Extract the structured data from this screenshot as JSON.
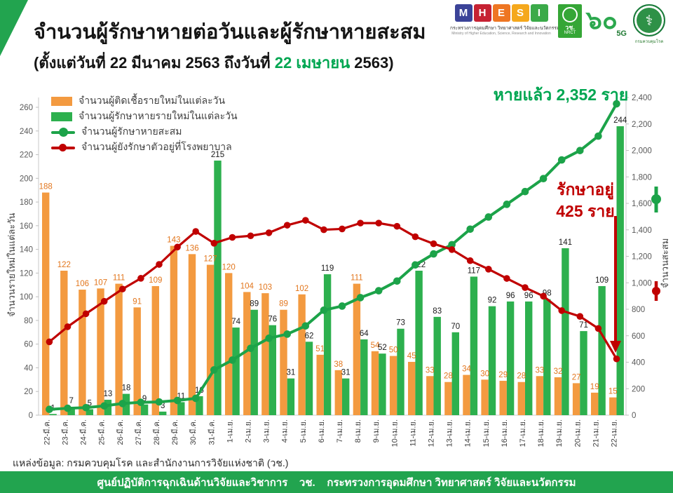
{
  "header": {
    "title": "จำนวนผู้รักษาหายต่อวันและผู้รักษาหายสะสม",
    "subtitle_prefix": "(ตั้งแต่วันที่ 22 มีนาคม 2563 ถึงวันที่ ",
    "subtitle_highlight": "22 เมษายน",
    "subtitle_suffix": " 2563)"
  },
  "logos": {
    "mhesi": {
      "letters": [
        "M",
        "H",
        "E",
        "S",
        "I"
      ],
      "caption_th": "กระทรวงการอุดมศึกษา วิทยาศาสตร์ วิจัยและนวัตกรรม",
      "caption_en": "Ministry of Higher Education, Science, Research and Innovation"
    },
    "nrct": {
      "abbr_th": "วช.",
      "abbr_en": "NRCT"
    },
    "anniversary": {
      "numeral": "๖๐",
      "tag": "5G"
    },
    "ddc": {
      "caption": "กรมควบคุมโรค"
    }
  },
  "legend": {
    "items": [
      {
        "label": "จำนวนผู้ติดเชื้อรายใหม่ในแต่ละวัน",
        "type": "bar",
        "color": "#F39A40"
      },
      {
        "label": "จำนวนผู้รักษาหายรายใหม่ในแต่ละวัน",
        "type": "bar",
        "color": "#2DB04E"
      },
      {
        "label": "จำนวนผู้รักษาหายสะสม",
        "type": "line",
        "color": "#1CA349"
      },
      {
        "label": "จำนวนผู้ยังรักษาตัวอยู่ที่โรงพยาบาล",
        "type": "line",
        "color": "#C00000"
      }
    ]
  },
  "annotations": {
    "recovered_total": "หายแล้ว 2,352 ราย",
    "in_hospital_line1": "รักษาอยู่",
    "in_hospital_line2": "425 ราย"
  },
  "chart_data": {
    "type": "bar",
    "subtype": "combo-bar-line-dual-axis",
    "categories": [
      "22-มี.ค.",
      "23-มี.ค.",
      "24-มี.ค.",
      "25-มี.ค.",
      "26-มี.ค.",
      "27-มี.ค.",
      "28-มี.ค.",
      "29-มี.ค.",
      "30-มี.ค.",
      "31-มี.ค.",
      "1-เม.ย.",
      "2-เม.ย.",
      "3-เม.ย.",
      "4-เม.ย.",
      "5-เม.ย.",
      "6-เม.ย.",
      "7-เม.ย.",
      "8-เม.ย.",
      "9-เม.ย.",
      "10-เม.ย.",
      "11-เม.ย.",
      "12-เม.ย.",
      "13-เม.ย.",
      "14-เม.ย.",
      "15-เม.ย.",
      "16-เม.ย.",
      "17-เม.ย.",
      "18-เม.ย.",
      "19-เม.ย.",
      "20-เม.ย.",
      "21-เม.ย.",
      "22-เม.ย."
    ],
    "series": [
      {
        "name": "จำนวนผู้ติดเชื้อรายใหม่ในแต่ละวัน",
        "type": "bar",
        "axis": "left",
        "color": "#F39A40",
        "label_color": "#E2761D",
        "values": [
          188,
          122,
          106,
          107,
          111,
          91,
          109,
          143,
          136,
          127,
          120,
          104,
          103,
          89,
          102,
          51,
          38,
          111,
          54,
          50,
          45,
          33,
          28,
          34,
          30,
          29,
          28,
          33,
          32,
          27,
          19,
          15
        ]
      },
      {
        "name": "จำนวนผู้รักษาหายรายใหม่ในแต่ละวัน",
        "type": "bar",
        "axis": "left",
        "color": "#2DB04E",
        "label_color": "#1A1A1A",
        "values": [
          1,
          7,
          5,
          13,
          18,
          9,
          3,
          11,
          16,
          215,
          74,
          89,
          76,
          31,
          62,
          119,
          31,
          64,
          52,
          73,
          122,
          83,
          70,
          117,
          92,
          96,
          96,
          98,
          141,
          71,
          109,
          244
        ]
      },
      {
        "name": "จำนวนผู้รักษาหายสะสม",
        "type": "line",
        "axis": "right",
        "color": "#1CA349",
        "values": [
          44,
          52,
          57,
          70,
          88,
          97,
          100,
          111,
          127,
          342,
          416,
          505,
          581,
          612,
          674,
          793,
          824,
          888,
          940,
          1013,
          1135,
          1218,
          1288,
          1405,
          1497,
          1593,
          1689,
          1787,
          1928,
          1999,
          2108,
          2352
        ]
      },
      {
        "name": "จำนวนผู้ยังรักษาตัวอยู่ที่โรงพยาบาล",
        "type": "line",
        "axis": "right",
        "color": "#C00000",
        "values": [
          554,
          668,
          766,
          860,
          953,
          1034,
          1139,
          1270,
          1388,
          1299,
          1343,
          1355,
          1378,
          1435,
          1472,
          1401,
          1407,
          1451,
          1451,
          1427,
          1348,
          1295,
          1251,
          1167,
          1103,
          1033,
          964,
          899,
          790,
          746,
          655,
          425
        ]
      }
    ],
    "left_axis": {
      "title": "จำนวนรายใหม่ในแต่ละวัน",
      "min": 0,
      "max": 260,
      "step": 20
    },
    "right_axis": {
      "title": "จำนวนสะสม",
      "min": 0,
      "max": 2400,
      "step": 200
    },
    "grid": false,
    "legend_position": "top-left-inside"
  },
  "footer": {
    "source": "แหล่งข้อมูล: กรมควบคุมโรค และสำนักงานการวิจัยแห่งชาติ (วช.)",
    "banner": "ศูนย์ปฏิบัติการฉุกเฉินด้านวิจัยและวิชาการ    วช.    กระทรวงการอุดมศึกษา วิทยาศาสตร์ วิจัยและนวัตกรรม"
  }
}
